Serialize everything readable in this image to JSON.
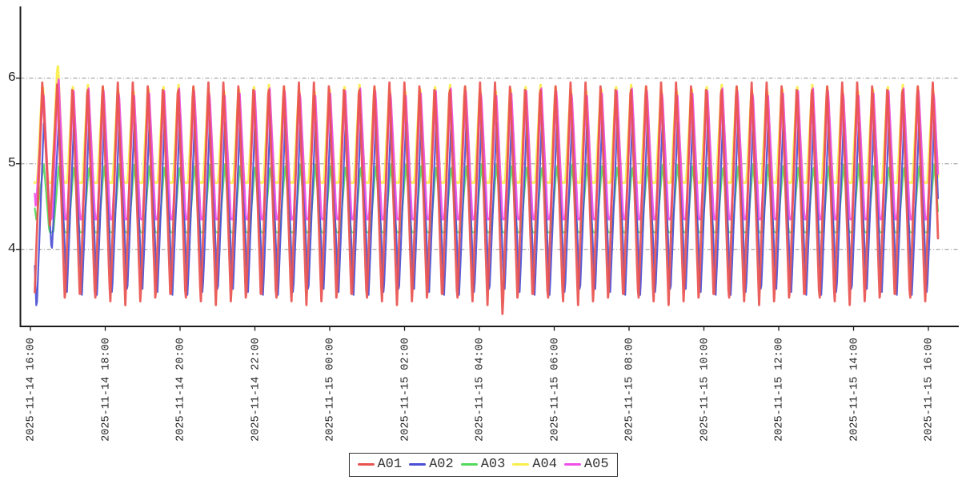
{
  "chart_data": {
    "type": "line",
    "title": "",
    "xlabel": "",
    "ylabel": "",
    "x_axis": {
      "tick_labels": [
        "2025-11-14 16:00",
        "2025-11-14 18:00",
        "2025-11-14 20:00",
        "2025-11-14 22:00",
        "2025-11-15 00:00",
        "2025-11-15 02:00",
        "2025-11-15 04:00",
        "2025-11-15 06:00",
        "2025-11-15 08:00",
        "2025-11-15 10:00",
        "2025-11-15 12:00",
        "2025-11-15 14:00",
        "2025-11-15 16:00"
      ],
      "tick_interval_minutes": 120,
      "data_start_minutes": 7,
      "data_end_minutes": 1456
    },
    "y_axis": {
      "tick_labels": [
        "4",
        "5",
        "6"
      ],
      "ticks": [
        4,
        5,
        6
      ],
      "ylim": [
        3.1,
        6.85
      ],
      "grid": "dash-dot",
      "grid_color": "#8f8f8f",
      "axis_color": "#1c1c1c"
    },
    "legend": {
      "position": "bottom-center",
      "entries": [
        "A01",
        "A02",
        "A03",
        "A04",
        "A05"
      ]
    },
    "waveform_note": "all series oscillate as triangle waves, period ~24 min over 24 h window",
    "series": [
      {
        "name": "A01",
        "color": "#e9534f",
        "stroke_width": 2.8,
        "min": 3.35,
        "max": 5.97,
        "period_minutes": 24.2,
        "phase_minutes": 7,
        "trough_overrides": {
          "0": 3.5,
          "1": 4.25,
          "31": 3.2
        },
        "peak_overrides": {}
      },
      {
        "name": "A02",
        "color": "#4c4fd4",
        "stroke_width": 2.2,
        "min": 3.45,
        "max": 5.58,
        "period_minutes": 24.2,
        "phase_minutes": 9.9,
        "trough_overrides": {
          "0": 3.25,
          "1": 3.95
        },
        "peak_overrides": {}
      },
      {
        "name": "A03",
        "color": "#53d95c",
        "stroke_width": 2.2,
        "min": 3.9,
        "clip_min": 4.2,
        "max": 5.0,
        "period_minutes": 24.2,
        "phase_minutes": 9.4,
        "trough_overrides": {
          "0": 4.35
        },
        "peak_overrides": {}
      },
      {
        "name": "A04",
        "color": "#f8ee4b",
        "stroke_width": 3.2,
        "min": 4.3,
        "clip_min": 4.78,
        "max": 5.92,
        "period_minutes": 24.2,
        "phase_minutes": 7.5,
        "trough_overrides": {},
        "peak_overrides": {
          "0": 5.97,
          "1": 6.2
        }
      },
      {
        "name": "A05",
        "color": "#ee4fe9",
        "stroke_width": 2.4,
        "min": 4.1,
        "clip_min": 4.35,
        "max": 5.88,
        "period_minutes": 24.2,
        "phase_minutes": 8.7,
        "trough_overrides": {
          "0": 4.45
        },
        "peak_overrides": {
          "1": 6.05
        }
      }
    ],
    "draw_order": [
      "A03",
      "A04",
      "A02",
      "A05",
      "A01"
    ]
  }
}
